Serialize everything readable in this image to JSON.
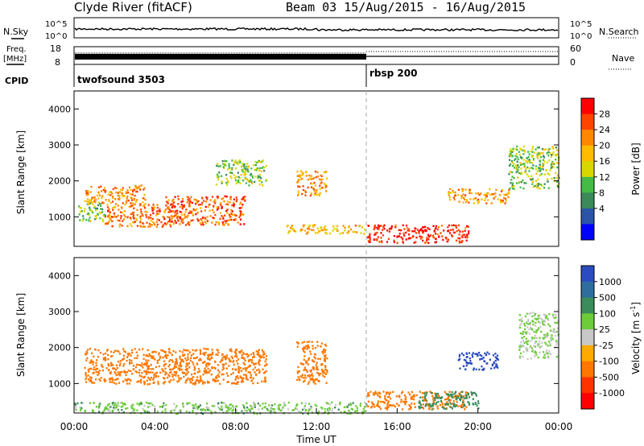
{
  "header": {
    "title": "Clyde River (fitACF)",
    "beam_info": "Beam 03  15/Aug/2015 - 16/Aug/2015"
  },
  "top_panels": {
    "nsky_label": "N.Sky",
    "nsky_ticks": [
      "10^5",
      "10^0"
    ],
    "nsearch_ticks": [
      "10^5",
      "10^0"
    ],
    "nsearch_label": "N.Search",
    "freq_label": "Freq.",
    "freq_unit": "[MHz]",
    "freq_ticks": [
      "18",
      "8"
    ],
    "nave_ticks": [
      "60",
      "0"
    ],
    "nave_label": "Nave",
    "cpid_label": "CPID",
    "cpid_program_1": "twofsound 3503",
    "cpid_program_2": "rbsp 200"
  },
  "power_colorbar": {
    "label": "Power [dB]",
    "ticks": [
      "28",
      "24",
      "20",
      "16",
      "12",
      "8",
      "4"
    ],
    "colors": [
      "#ff0000",
      "#ff4400",
      "#ff8800",
      "#ffbb00",
      "#d8d800",
      "#44bb44",
      "#3a8a5a",
      "#2b54a8",
      "#0000ff"
    ]
  },
  "velocity_colorbar": {
    "label": "Velocity [m s",
    "label_sup": "-1",
    "label_close": "]",
    "ticks": [
      "1000",
      "500",
      "100",
      "25",
      "-25",
      "-100",
      "-500",
      "-1000"
    ],
    "colors": [
      "#2b4cc0",
      "#2e6e9e",
      "#3a8c5a",
      "#6ccc3a",
      "#c8c8c8",
      "#ffaa00",
      "#ff7700",
      "#ff3300",
      "#ff0000"
    ]
  },
  "chart_data": {
    "type": "heatmap",
    "xlabel": "Time UT",
    "x_ticks": [
      "00:00",
      "04:00",
      "08:00",
      "12:00",
      "16:00",
      "20:00",
      "00:00"
    ],
    "x_range_hours": [
      0,
      24
    ],
    "cpid_switch_hour": 14.55,
    "y_range_km": [
      180,
      4500
    ],
    "y_ticks": [
      "4000",
      "3000",
      "2000",
      "1000"
    ],
    "ylabel": "Slant Range [km]",
    "power_regions": [
      {
        "t0": 0.5,
        "t1": 3.5,
        "r0": 1400,
        "r1": 1900,
        "v": 22
      },
      {
        "t0": 1.5,
        "t1": 5.0,
        "r0": 750,
        "r1": 1400,
        "v": 24
      },
      {
        "t0": 4.5,
        "t1": 8.5,
        "r0": 800,
        "r1": 1600,
        "v": 25
      },
      {
        "t0": 7.0,
        "t1": 9.5,
        "r0": 1900,
        "r1": 2600,
        "v": 14
      },
      {
        "t0": 0.2,
        "t1": 1.5,
        "r0": 900,
        "r1": 1400,
        "v": 14
      },
      {
        "t0": 11.0,
        "t1": 12.5,
        "r0": 1600,
        "r1": 2300,
        "v": 22
      },
      {
        "t0": 10.5,
        "t1": 14.5,
        "r0": 550,
        "r1": 800,
        "v": 20
      },
      {
        "t0": 14.5,
        "t1": 19.5,
        "r0": 300,
        "r1": 800,
        "v": 29
      },
      {
        "t0": 18.5,
        "t1": 21.5,
        "r0": 1400,
        "r1": 1800,
        "v": 22
      },
      {
        "t0": 21.5,
        "t1": 24,
        "r0": 1800,
        "r1": 3000,
        "v": 14
      }
    ],
    "velocity_regions": [
      {
        "t0": 0.5,
        "t1": 9.5,
        "r0": 1000,
        "r1": 2000,
        "v": -300
      },
      {
        "t0": 0.0,
        "t1": 14.5,
        "r0": 180,
        "r1": 500,
        "v": 60
      },
      {
        "t0": 11.0,
        "t1": 12.5,
        "r0": 1000,
        "r1": 2200,
        "v": -300
      },
      {
        "t0": 14.5,
        "t1": 19.5,
        "r0": 300,
        "r1": 800,
        "v": -200
      },
      {
        "t0": 17.0,
        "t1": 20.0,
        "r0": 300,
        "r1": 800,
        "v": 300
      },
      {
        "t0": 19.0,
        "t1": 21.0,
        "r0": 1400,
        "r1": 1900,
        "v": 1200
      },
      {
        "t0": 22.0,
        "t1": 24,
        "r0": 1700,
        "r1": 3000,
        "v": 40
      }
    ]
  }
}
